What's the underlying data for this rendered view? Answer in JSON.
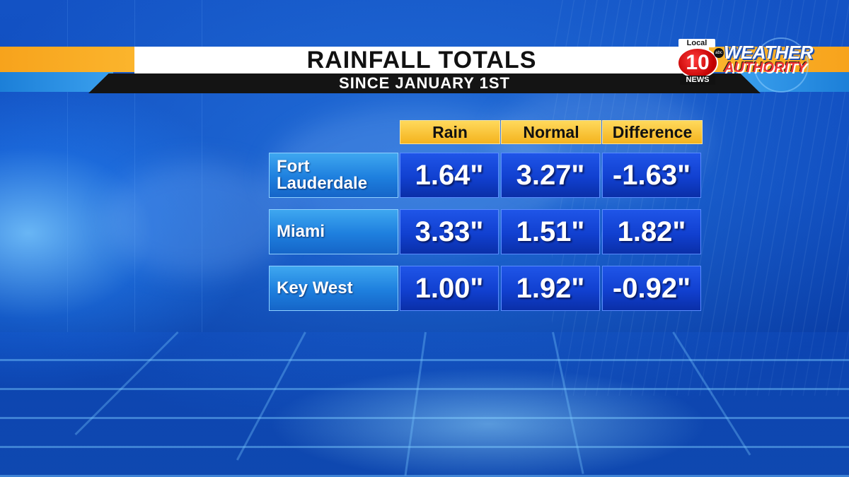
{
  "title": "RAINFALL TOTALS",
  "subtitle": "SINCE JANUARY 1ST",
  "logo": {
    "local": "Local",
    "number": "10",
    "abc": "abc",
    "news": "NEWS",
    "weather": "WEATHER",
    "authority": "AUTHORITY"
  },
  "table": {
    "headers": [
      "Rain",
      "Normal",
      "Difference"
    ],
    "rows": [
      {
        "city": "Fort\nLauderdale",
        "rain": "1.64\"",
        "normal": "3.27\"",
        "difference": "-1.63\""
      },
      {
        "city": "Miami",
        "rain": "3.33\"",
        "normal": "1.51\"",
        "difference": "1.82\""
      },
      {
        "city": "Key West",
        "rain": "1.00\"",
        "normal": "1.92\"",
        "difference": "-0.92\""
      }
    ]
  },
  "colors": {
    "header_gold": "#f4b31e",
    "cell_blue": "#1140d0",
    "label_blue": "#1e7fde",
    "stripe_orange": "#f7a31c"
  }
}
